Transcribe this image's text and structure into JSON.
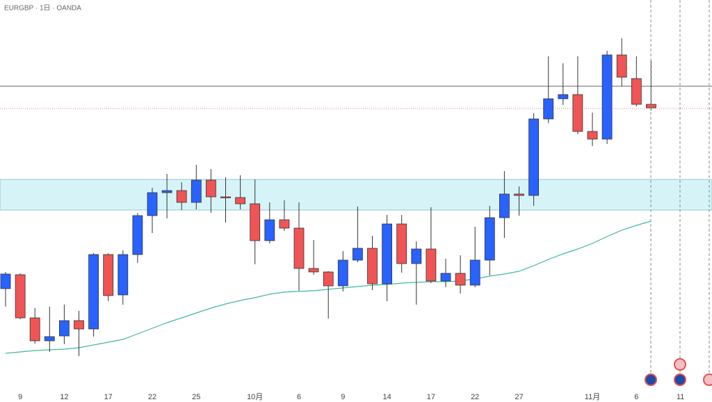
{
  "chart_data": {
    "type": "candlestick",
    "title": "EURGBP · 1日 · OANDA",
    "categories": [
      null,
      "9",
      null,
      null,
      "12",
      null,
      null,
      "17",
      null,
      null,
      "22",
      null,
      null,
      "25",
      null,
      null,
      null,
      "10月",
      null,
      null,
      "6",
      null,
      null,
      "9",
      null,
      null,
      "14",
      null,
      null,
      "17",
      null,
      null,
      "22",
      null,
      null,
      "27",
      null,
      null,
      null,
      null,
      "11月",
      null,
      null,
      "6",
      null,
      null,
      "11",
      null,
      null
    ],
    "open": [
      0.85925,
      0.86025,
      0.85715,
      0.8555,
      0.85585,
      0.85695,
      0.85635,
      0.8617,
      0.8588,
      0.8617,
      0.8645,
      0.86615,
      0.8663,
      0.86545,
      0.86705,
      0.86585,
      0.8658,
      0.86535,
      0.8627,
      0.8642,
      0.8636,
      0.8607,
      0.86045,
      0.85945,
      0.8613,
      0.86215,
      0.8596,
      0.8639,
      0.86105,
      0.8621,
      0.8598,
      0.86035,
      0.8595,
      0.8613,
      0.86435,
      0.86605,
      0.86595,
      0.87145,
      0.8729,
      0.8732,
      0.87055,
      0.87,
      0.87605,
      0.87435,
      0.8725,
      null,
      null,
      null,
      null
    ],
    "high": [
      0.86045,
      0.86035,
      0.85785,
      0.85795,
      0.8581,
      0.85765,
      0.8618,
      0.8618,
      0.862,
      0.8647,
      0.8665,
      0.8675,
      0.8669,
      0.86815,
      0.86785,
      0.86725,
      0.8674,
      0.8671,
      0.86545,
      0.8656,
      0.86545,
      0.86275,
      0.8605,
      0.86195,
      0.86515,
      0.86305,
      0.86455,
      0.86455,
      0.86265,
      0.8651,
      0.8614,
      0.86165,
      0.8637,
      0.8652,
      0.8677,
      0.8666,
      0.87185,
      0.87595,
      0.87545,
      0.87595,
      0.8719,
      0.87635,
      0.87725,
      0.87595,
      0.87565,
      null,
      null,
      null,
      null
    ],
    "low": [
      0.85795,
      0.85705,
      0.8553,
      0.8547,
      0.85525,
      0.8544,
      0.8558,
      0.85835,
      0.8581,
      0.8611,
      0.86325,
      0.8643,
      0.8649,
      0.86495,
      0.8647,
      0.864,
      0.86495,
      0.861,
      0.8625,
      0.8634,
      0.8591,
      0.86025,
      0.8571,
      0.85905,
      0.86115,
      0.85915,
      0.85835,
      0.8604,
      0.8581,
      0.85965,
      0.85935,
      0.8589,
      0.85935,
      0.8602,
      0.8629,
      0.8645,
      0.8652,
      0.87115,
      0.87245,
      0.87035,
      0.8695,
      0.86965,
      0.8738,
      0.87235,
      0.87205,
      null,
      null,
      null,
      null
    ],
    "close": [
      0.8603,
      0.85715,
      0.8555,
      0.8558,
      0.85695,
      0.85635,
      0.8617,
      0.85875,
      0.8617,
      0.8645,
      0.86615,
      0.8663,
      0.86545,
      0.86705,
      0.86585,
      0.8658,
      0.86535,
      0.8627,
      0.8642,
      0.8636,
      0.8607,
      0.86045,
      0.85945,
      0.8613,
      0.86215,
      0.8596,
      0.8639,
      0.86105,
      0.8621,
      0.8598,
      0.86035,
      0.8595,
      0.8613,
      0.86435,
      0.86605,
      0.86595,
      0.87145,
      0.8729,
      0.8732,
      0.87055,
      0.87,
      0.87605,
      0.87445,
      0.8725,
      0.87225,
      null,
      null,
      null,
      null
    ],
    "up_color": "#2962ff",
    "down_color": "#f05454",
    "moving_average": {
      "color": "#3fb8a0",
      "values": [
        0.8546,
        0.8547,
        0.8548,
        0.85485,
        0.8549,
        0.855,
        0.8552,
        0.8554,
        0.8556,
        0.856,
        0.8564,
        0.8568,
        0.85715,
        0.8575,
        0.85785,
        0.85815,
        0.8584,
        0.8586,
        0.85885,
        0.859,
        0.85905,
        0.8591,
        0.8592,
        0.8593,
        0.8594,
        0.8595,
        0.85955,
        0.85965,
        0.8597,
        0.85975,
        0.85975,
        0.8598,
        0.85995,
        0.86015,
        0.8603,
        0.8605,
        0.8609,
        0.86135,
        0.86175,
        0.8621,
        0.8625,
        0.863,
        0.86345,
        0.8638,
        0.8641,
        null,
        null,
        null,
        null
      ]
    },
    "levels": [
      {
        "value": 0.8738,
        "color": "#333333"
      },
      {
        "value": 0.8722,
        "color": "#e05050"
      }
    ],
    "zone": {
      "range": [
        0.8649,
        0.8671
      ],
      "color": "#d6f4f8"
    },
    "ylim": [
      0.852,
      0.88
    ]
  }
}
